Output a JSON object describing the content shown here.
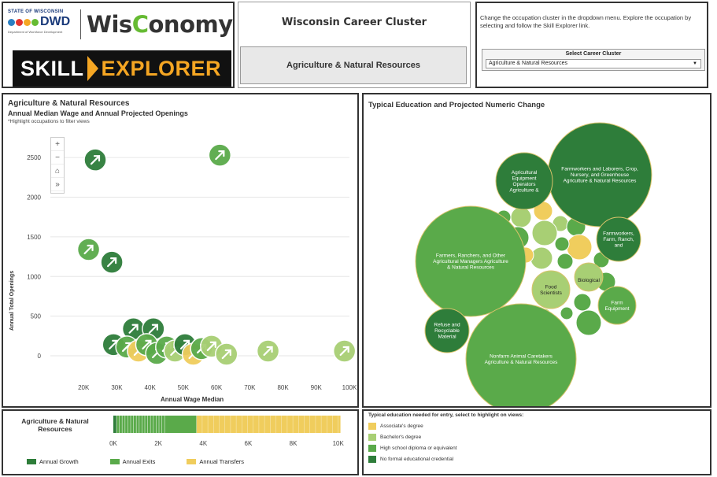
{
  "header": {
    "dwd_state": "STATE OF WISCONSIN",
    "dwd_name": "DWD",
    "dwd_sub": "Department of Workforce Development",
    "wisconomy_pre": "Wis",
    "wisconomy_leaf": "C",
    "wisconomy_post": "onomy",
    "skill_word": "SKILL",
    "explorer_word": "EXPLORER",
    "app_title": "Wisconsin Career Cluster",
    "cluster_name": "Agriculture & Natural Resources"
  },
  "selector": {
    "instructions": "Change the occupation cluster in the dropdown menu. Explore the occupation by selecting and follow the Skill Explorer link.",
    "label": "Select Career Cluster",
    "value": "Agriculture & Natural Resources"
  },
  "colors": {
    "dark_green": "#2e7d3a",
    "mid_green": "#5aaa4a",
    "light_green": "#a8cf74",
    "gold": "#f0cd5d",
    "border": "#333333"
  },
  "scatter": {
    "title": "Agriculture & Natural Resources",
    "subtitle": "Annual Median Wage and Annual Projected Openings",
    "hint": "*Highlight occupations to filter views",
    "zoom_controls": [
      "+",
      "−",
      "⌂",
      "»"
    ],
    "ylabel": "Annual Total Openings",
    "xlabel": "Annual Wage Median"
  },
  "bubble": {
    "title": "Typical Education and Projected Numeric Change"
  },
  "bar": {
    "title": "Agriculture & Natural Resources",
    "legend": [
      {
        "label": "Annual Growth",
        "color": "#2e7d3a"
      },
      {
        "label": "Annual Exits",
        "color": "#5aaa4a"
      },
      {
        "label": "Annual Transfers",
        "color": "#f0cd5d"
      }
    ]
  },
  "education_legend": {
    "title": "Typical education needed for entry, select to highlight on views:",
    "items": [
      {
        "label": "Associate's degree",
        "color": "#f0cd5d"
      },
      {
        "label": "Bachelor's degree",
        "color": "#a8cf74"
      },
      {
        "label": "High school diploma or equivalent",
        "color": "#5aaa4a"
      },
      {
        "label": "No formal educational credential",
        "color": "#2e7d3a"
      }
    ]
  },
  "chart_data": [
    {
      "type": "scatter",
      "title": "Agriculture & Natural Resources",
      "subtitle": "Annual Median Wage and Annual Projected Openings",
      "xlabel": "Annual Wage Median",
      "ylabel": "Annual Total Openings",
      "xlim": [
        10000,
        100000
      ],
      "ylim": [
        0,
        2700
      ],
      "x_ticks": [
        "20K",
        "30K",
        "40K",
        "50K",
        "60K",
        "70K",
        "80K",
        "90K",
        "100K"
      ],
      "y_ticks": [
        "0",
        "500",
        "1000",
        "1500",
        "2000",
        "2500"
      ],
      "grid": true,
      "points": [
        {
          "x": 23500,
          "y": 2470,
          "edu": "none"
        },
        {
          "x": 61000,
          "y": 2530,
          "edu": "hs"
        },
        {
          "x": 21500,
          "y": 1340,
          "edu": "hs"
        },
        {
          "x": 28500,
          "y": 1180,
          "edu": "none"
        },
        {
          "x": 35000,
          "y": 340,
          "edu": "none"
        },
        {
          "x": 41000,
          "y": 340,
          "edu": "none"
        },
        {
          "x": 29000,
          "y": 140,
          "edu": "none"
        },
        {
          "x": 33000,
          "y": 110,
          "edu": "hs"
        },
        {
          "x": 36500,
          "y": 60,
          "edu": "assoc"
        },
        {
          "x": 39000,
          "y": 140,
          "edu": "hs"
        },
        {
          "x": 42000,
          "y": 30,
          "edu": "hs"
        },
        {
          "x": 45000,
          "y": 110,
          "edu": "hs"
        },
        {
          "x": 47500,
          "y": 60,
          "edu": "bach"
        },
        {
          "x": 50500,
          "y": 140,
          "edu": "none"
        },
        {
          "x": 53000,
          "y": 20,
          "edu": "assoc"
        },
        {
          "x": 55500,
          "y": 90,
          "edu": "hs"
        },
        {
          "x": 58500,
          "y": 120,
          "edu": "bach"
        },
        {
          "x": 63000,
          "y": 20,
          "edu": "bach"
        },
        {
          "x": 75500,
          "y": 60,
          "edu": "bach"
        },
        {
          "x": 98500,
          "y": 60,
          "edu": "bach"
        }
      ]
    },
    {
      "type": "bar",
      "title": "Agriculture & Natural Resources",
      "orientation": "horizontal",
      "x_ticks": [
        "0K",
        "2K",
        "4K",
        "6K",
        "8K",
        "10K"
      ],
      "xlim": [
        0,
        10500
      ],
      "series": [
        {
          "name": "Annual Growth",
          "values": [
            150
          ]
        },
        {
          "name": "Annual Exits",
          "values": [
            3550
          ]
        },
        {
          "name": "Annual Transfers",
          "values": [
            6400
          ]
        }
      ]
    },
    {
      "type": "bubble",
      "title": "Typical Education and Projected Numeric Change",
      "bubbles": [
        {
          "label": "Farmworkers and Laborers, Crop, Nursery, and Greenhouse Agriculture & Natural Resources",
          "edu": "none",
          "size": 68
        },
        {
          "label": "Farmers, Ranchers, and Other Agricultural Managers Agriculture & Natural Resources",
          "edu": "hs",
          "size": 70
        },
        {
          "label": "Nonfarm Animal Caretakers Agriculture & Natural Resources",
          "edu": "hs",
          "size": 70
        },
        {
          "label": "Agricultural Equipment Operators Agriculture &",
          "edu": "none",
          "size": 36
        },
        {
          "label": "Farmworkers, Farm, Ranch, and",
          "edu": "none",
          "size": 28
        },
        {
          "label": "Refuse and Recyclable Material",
          "edu": "none",
          "size": 28
        },
        {
          "label": "Food Scientists",
          "edu": "bach",
          "size": 24
        },
        {
          "label": "Biological",
          "edu": "bach",
          "size": 18
        },
        {
          "label": "Farm Equipment",
          "edu": "hs",
          "size": 24
        }
      ]
    }
  ]
}
